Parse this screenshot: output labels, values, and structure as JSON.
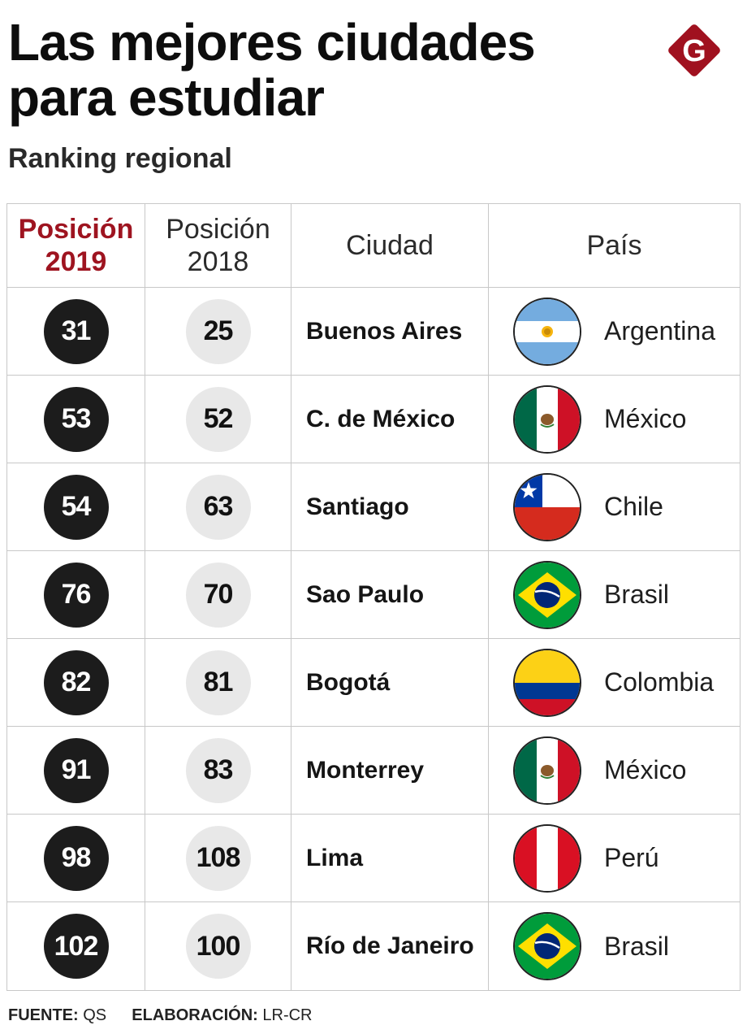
{
  "header": {
    "title_line1": "Las mejores ciudades",
    "title_line2": "para estudiar",
    "subtitle": "Ranking regional",
    "logo_letter": "G",
    "logo_color": "#a0111f"
  },
  "table": {
    "headers": {
      "pos2019_line1": "Posición",
      "pos2019_line2": "2019",
      "pos2018_line1": "Posición",
      "pos2018_line2": "2018",
      "city": "Ciudad",
      "country": "País"
    },
    "rows": [
      {
        "pos2019": "31",
        "pos2018": "25",
        "city": "Buenos Aires",
        "country": "Argentina",
        "flag": "argentina-flag-icon"
      },
      {
        "pos2019": "53",
        "pos2018": "52",
        "city": "C. de México",
        "country": "México",
        "flag": "mexico-flag-icon"
      },
      {
        "pos2019": "54",
        "pos2018": "63",
        "city": "Santiago",
        "country": "Chile",
        "flag": "chile-flag-icon"
      },
      {
        "pos2019": "76",
        "pos2018": "70",
        "city": "Sao Paulo",
        "country": "Brasil",
        "flag": "brazil-flag-icon"
      },
      {
        "pos2019": "82",
        "pos2018": "81",
        "city": "Bogotá",
        "country": "Colombia",
        "flag": "colombia-flag-icon"
      },
      {
        "pos2019": "91",
        "pos2018": "83",
        "city": "Monterrey",
        "country": "México",
        "flag": "mexico-flag-icon"
      },
      {
        "pos2019": "98",
        "pos2018": "108",
        "city": "Lima",
        "country": "Perú",
        "flag": "peru-flag-icon"
      },
      {
        "pos2019": "102",
        "pos2018": "100",
        "city": "Río de Janeiro",
        "country": "Brasil",
        "flag": "brazil-flag-icon"
      }
    ]
  },
  "footer": {
    "source_label": "FUENTE:",
    "source_value": "QS",
    "credit_label": "ELABORACIÓN:",
    "credit_value": "LR-CR"
  },
  "colors": {
    "accent_red": "#9e1420",
    "dark_circle": "#1c1c1c",
    "light_circle": "#e8e8e8"
  }
}
